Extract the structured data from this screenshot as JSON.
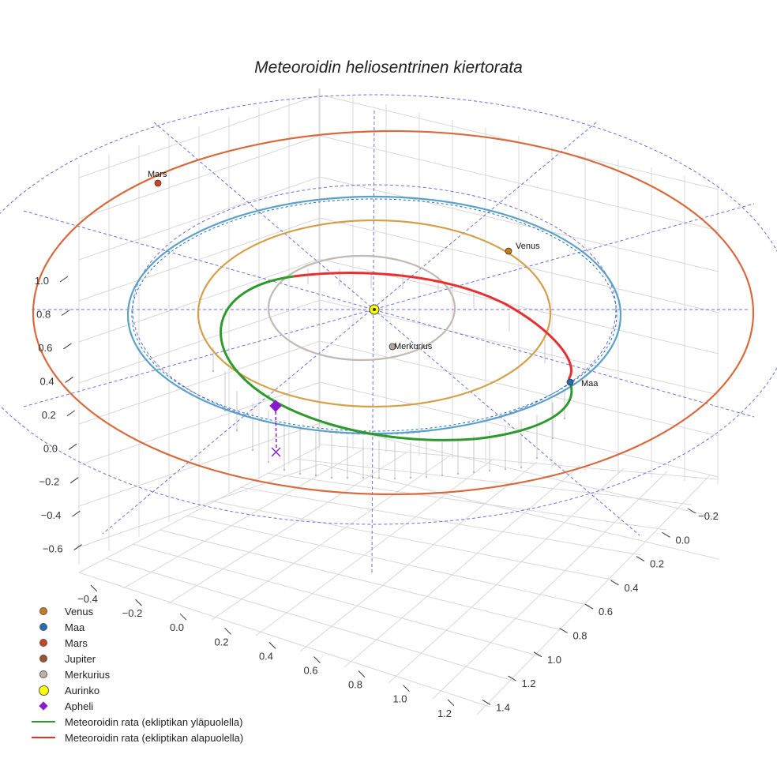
{
  "chart_data": {
    "type": "line",
    "title": "Meteoroidin heliosentrinen kiertorata",
    "z_ticks": [
      "1.0",
      "0.8",
      "0.6",
      "0.4",
      "0.2",
      "0.0",
      "−0.2",
      "−0.4",
      "−0.6"
    ],
    "x_ticks": [
      "−0.4",
      "−0.2",
      "0.0",
      "0.2",
      "0.4",
      "0.6",
      "0.8",
      "1.0",
      "1.2"
    ],
    "y_ticks": [
      "−0.2",
      "0.0",
      "0.2",
      "0.4",
      "0.6",
      "0.8",
      "1.0",
      "1.2",
      "1.4"
    ],
    "planet_orbits": [
      {
        "name": "Merkurius",
        "semi_major_axis_au": 0.39,
        "color": "#c4b8b0"
      },
      {
        "name": "Venus",
        "semi_major_axis_au": 0.72,
        "color": "#d4a04a"
      },
      {
        "name": "Maa",
        "semi_major_axis_au": 1.0,
        "color": "#5aa0c8"
      },
      {
        "name": "Mars",
        "semi_major_axis_au": 1.52,
        "color": "#d86a3e"
      }
    ],
    "planets": [
      {
        "name": "Mars",
        "label": "Mars",
        "color": "#d0431f"
      },
      {
        "name": "Venus",
        "label": "Venus",
        "color": "#c9781a"
      },
      {
        "name": "Merkurius",
        "label": "Merkurius",
        "color": "#b0a8a0"
      },
      {
        "name": "Maa",
        "label": "Maa",
        "color": "#1f6fb8"
      }
    ],
    "meteoroid_orbit": {
      "segments": [
        {
          "name": "Meteoroidin rata (ekliptikan yläpuolella)",
          "color": "#2e9a2e"
        },
        {
          "name": "Meteoroidin rata (ekliptikan alapuolella)",
          "color": "#e83030"
        }
      ],
      "aphelion_color": "#8a1ad0"
    },
    "grid": true,
    "legend": "bottom-left"
  },
  "legend": {
    "items": [
      {
        "label": "Venus",
        "kind": "dot",
        "color": "#c9781a"
      },
      {
        "label": "Maa",
        "kind": "dot",
        "color": "#1f6fb8"
      },
      {
        "label": "Mars",
        "kind": "dot",
        "color": "#d0431f"
      },
      {
        "label": "Jupiter",
        "kind": "dot",
        "color": "#a0522d"
      },
      {
        "label": "Merkurius",
        "kind": "dot",
        "color": "#c0b0a8"
      },
      {
        "label": "Aurinko",
        "kind": "bigdot",
        "color": "#ffff00"
      },
      {
        "label": "Apheli",
        "kind": "diamond",
        "color": "#8a1ad0"
      },
      {
        "label": "Meteoroidin rata (ekliptikan yläpuolella)",
        "kind": "line",
        "color": "#2e9a2e"
      },
      {
        "label": "Meteoroidin rata (ekliptikan alapuolella)",
        "kind": "line",
        "color": "#e83030"
      }
    ]
  }
}
